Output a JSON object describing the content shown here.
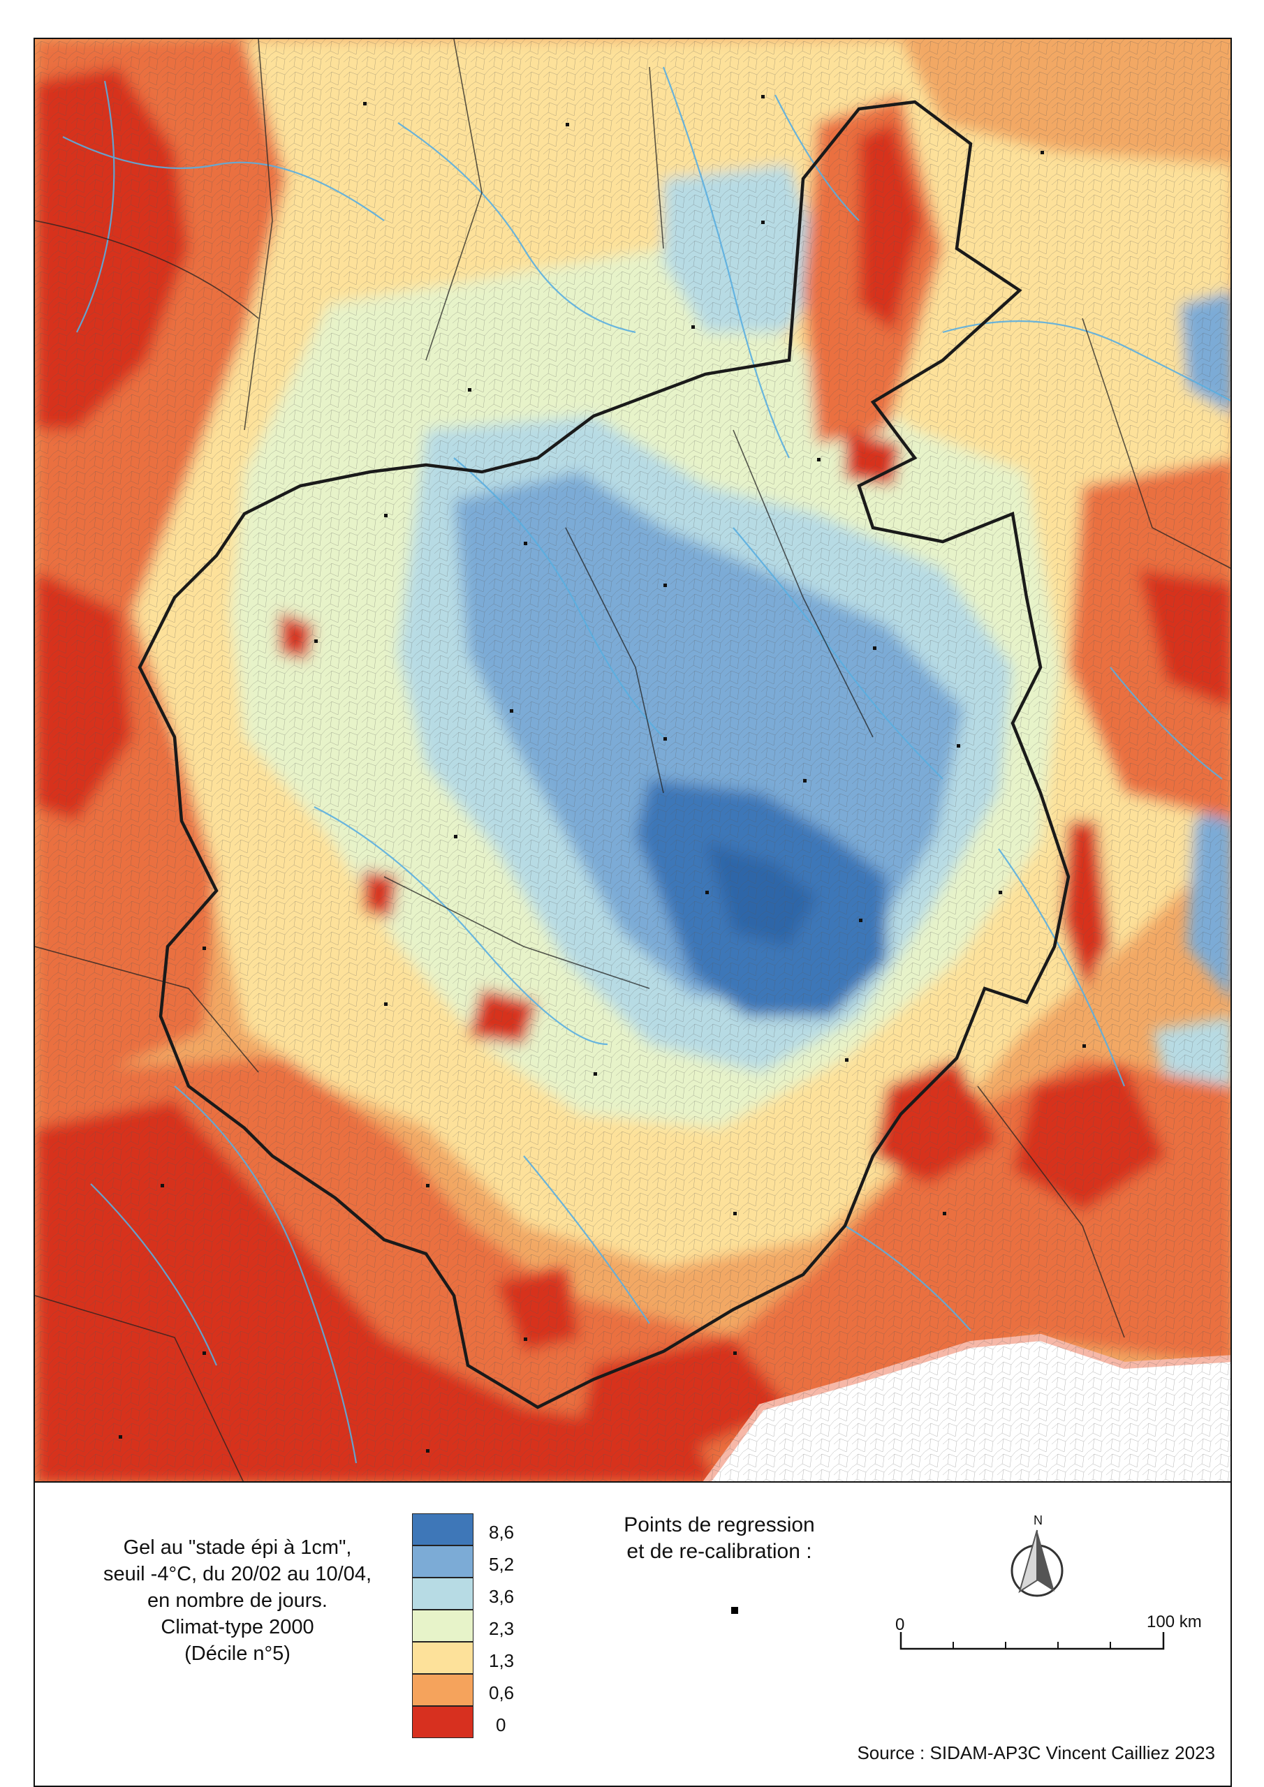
{
  "legend": {
    "title_lines": [
      "Gel au \"stade épi à 1cm\",",
      "seuil -4°C, du 20/02 au 10/04,",
      "en nombre de jours.",
      "Climat-type 2000",
      "(Décile n°5)"
    ],
    "classes": [
      {
        "label": "8,6",
        "color": "#3e77b8"
      },
      {
        "label": "5,2",
        "color": "#7cabd6"
      },
      {
        "label": "3,6",
        "color": "#b7dbe4"
      },
      {
        "label": "2,3",
        "color": "#e7f3c9"
      },
      {
        "label": "1,3",
        "color": "#fde19a"
      },
      {
        "label": "0,6",
        "color": "#f5a35c"
      },
      {
        "label": "0",
        "color": "#d7301f"
      }
    ],
    "points_title_lines": [
      "Points de regression",
      "et de re-calibration :"
    ],
    "north_label": "N",
    "scalebar": {
      "start_label": "0",
      "end_label": "100 km"
    },
    "source": "Source : SIDAM-AP3C Vincent Cailliez 2023"
  },
  "colors": {
    "zone_blue_dark": "#3e77b8",
    "zone_blue_mid": "#7cabd6",
    "zone_blue_light": "#b7dbe4",
    "zone_green_pale": "#e7f3c9",
    "zone_yellow": "#fde19a",
    "zone_orange": "#f5a35c",
    "zone_orange_dark": "#ea7040",
    "zone_red": "#d7301f",
    "river": "#5aaee0",
    "boundary": "#1a1a1a"
  }
}
